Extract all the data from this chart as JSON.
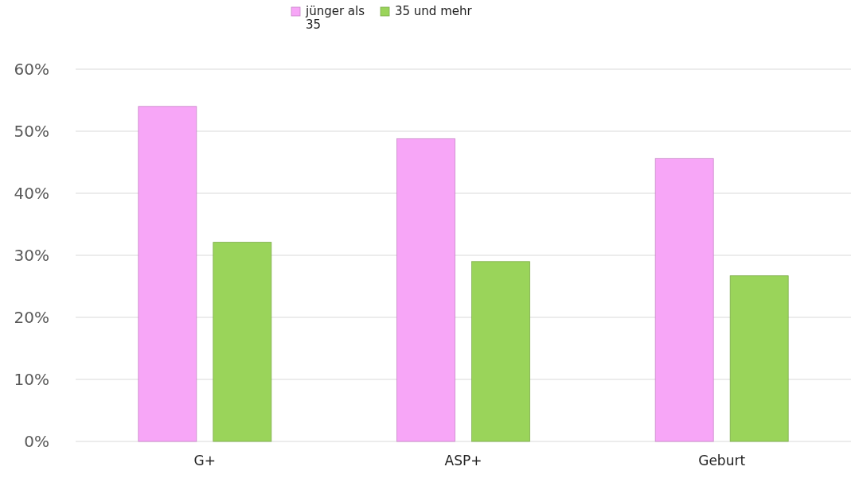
{
  "chart_data": {
    "type": "bar",
    "categories": [
      "G+",
      "ASP+",
      "Geburt"
    ],
    "series": [
      {
        "name": "jünger als 35",
        "color": "#f7a6f7",
        "values": [
          54,
          48.8,
          45.6
        ]
      },
      {
        "name": "35 und mehr",
        "color": "#9ad45a",
        "values": [
          32.1,
          29,
          26.7
        ]
      }
    ],
    "ylim": [
      0,
      60
    ],
    "yticks": [
      {
        "value": 0,
        "label": "0%"
      },
      {
        "value": 10,
        "label": "10%"
      },
      {
        "value": 20,
        "label": "20%"
      },
      {
        "value": 30,
        "label": "30%"
      },
      {
        "value": 40,
        "label": "40%"
      },
      {
        "value": 50,
        "label": "50%"
      },
      {
        "value": 60,
        "label": "60%"
      }
    ],
    "grid": "y",
    "legend": "top"
  }
}
